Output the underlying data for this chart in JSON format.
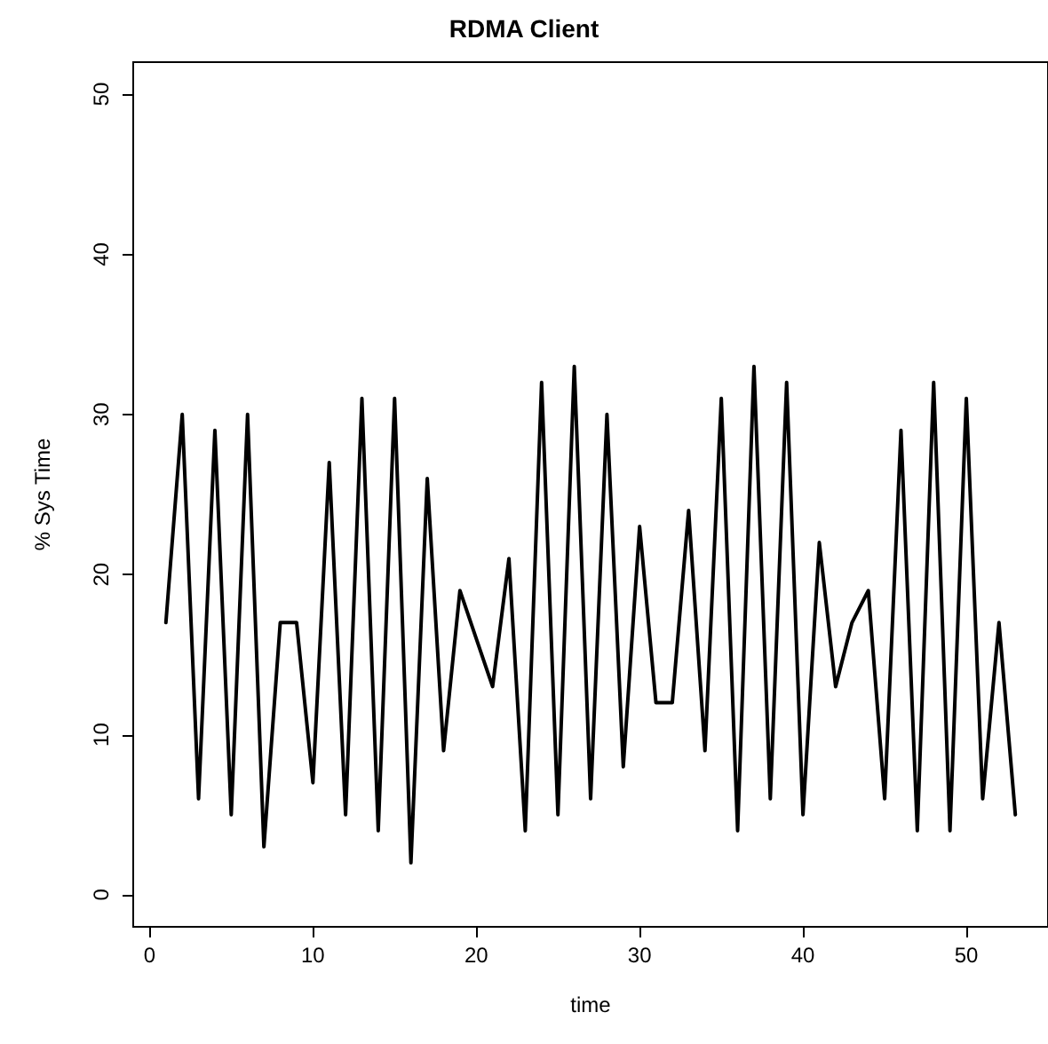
{
  "chart_data": {
    "type": "line",
    "title": "RDMA Client",
    "xlabel": "time",
    "ylabel": "% Sys Time",
    "x": [
      1,
      2,
      3,
      4,
      5,
      6,
      7,
      8,
      9,
      10,
      11,
      12,
      13,
      14,
      15,
      16,
      17,
      18,
      19,
      20,
      21,
      22,
      23,
      24,
      25,
      26,
      27,
      28,
      29,
      30,
      31,
      32,
      33,
      34,
      35,
      36,
      37,
      38,
      39,
      40,
      41,
      42,
      43,
      44,
      45,
      46,
      47,
      48,
      49,
      50,
      51,
      52,
      53
    ],
    "series": [
      {
        "color": "#000000",
        "values": [
          17,
          30,
          6,
          29,
          5,
          30,
          3,
          17,
          17,
          7,
          27,
          5,
          31,
          4,
          31,
          2,
          26,
          9,
          19,
          16,
          13,
          21,
          4,
          32,
          5,
          33,
          6,
          30,
          8,
          23,
          12,
          12,
          24,
          9,
          31,
          4,
          33,
          6,
          32,
          5,
          22,
          13,
          17,
          19,
          6,
          29,
          4,
          32,
          4,
          31,
          6,
          17,
          5
        ]
      }
    ],
    "xlim": [
      -1,
      55
    ],
    "ylim": [
      -2,
      52
    ],
    "xticks": [
      0,
      10,
      20,
      30,
      40,
      50
    ],
    "yticks": [
      0,
      10,
      20,
      30,
      40,
      50
    ],
    "grid": false,
    "marker": "none",
    "line_style": "solid"
  }
}
